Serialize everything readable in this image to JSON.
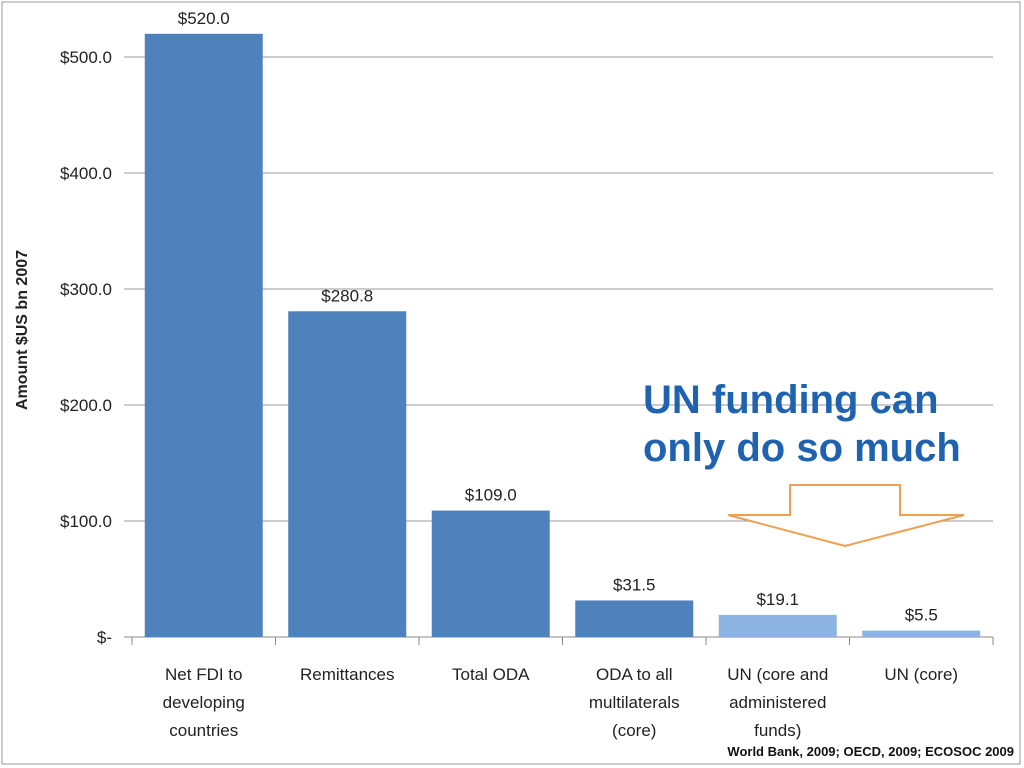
{
  "chart_data": {
    "type": "bar",
    "title": "",
    "ylabel": "Amount $US bn 2007",
    "xlabel": "",
    "ylim": [
      0,
      500
    ],
    "yticks": [
      {
        "value": 0,
        "label": "$-"
      },
      {
        "value": 100,
        "label": "$100.0"
      },
      {
        "value": 200,
        "label": "$200.0"
      },
      {
        "value": 300,
        "label": "$300.0"
      },
      {
        "value": 400,
        "label": "$400.0"
      },
      {
        "value": 500,
        "label": "$500.0"
      }
    ],
    "grid": true,
    "categories": [
      [
        "Net FDI to",
        "developing",
        "countries"
      ],
      [
        "Remittances"
      ],
      [
        "Total ODA"
      ],
      [
        "ODA to all",
        "multilaterals",
        "(core)"
      ],
      [
        "UN (core and",
        "administered",
        "funds)"
      ],
      [
        "UN (core)"
      ]
    ],
    "values": [
      520.0,
      280.8,
      109.0,
      31.5,
      19.1,
      5.5
    ],
    "value_labels": [
      "$520.0",
      "$280.8",
      "$109.0",
      "$31.5",
      "$19.1",
      "$5.5"
    ],
    "bar_colors": [
      "#4f81bd",
      "#4f81bd",
      "#4f81bd",
      "#4f81bd",
      "#8db3e2",
      "#8db3e2"
    ]
  },
  "annotation": {
    "line1": "UN funding can",
    "line2": "only do so much",
    "color": "#1f63b0",
    "arrow_color": "#f0a050"
  },
  "source": "World Bank, 2009; OECD, 2009; ECOSOC 2009"
}
